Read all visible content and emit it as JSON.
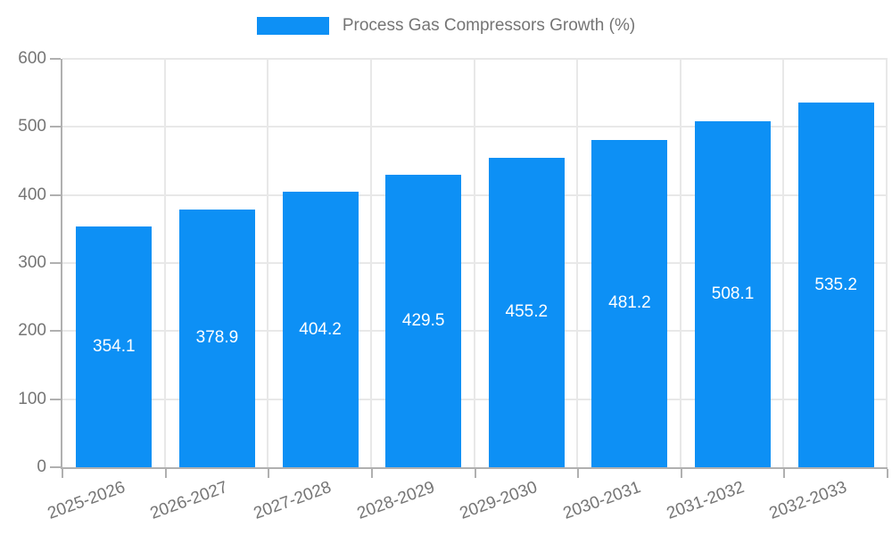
{
  "legend": {
    "label": "Process Gas Compressors Growth (%)"
  },
  "chart_data": {
    "type": "bar",
    "title": "Process Gas Compressors Growth (%)",
    "categories": [
      "2025-2026",
      "2026-2027",
      "2027-2028",
      "2028-2029",
      "2029-2030",
      "2030-2031",
      "2031-2032",
      "2032-2033"
    ],
    "series": [
      {
        "name": "Process Gas Compressors Growth (%)",
        "values": [
          354.1,
          378.9,
          404.2,
          429.5,
          455.2,
          481.2,
          508.1,
          535.2
        ]
      }
    ],
    "value_labels": [
      "354.1",
      "378.9",
      "404.2",
      "429.5",
      "455.2",
      "481.2",
      "508.1",
      "535.2"
    ],
    "xlabel": "",
    "ylabel": "",
    "ylim": [
      0,
      600
    ],
    "yticks": [
      0,
      100,
      200,
      300,
      400,
      500,
      600
    ],
    "grid": true,
    "legend_position": "top",
    "colors": {
      "bar": "#0d90f5",
      "value_label": "#ffffff",
      "axis_text": "#757575",
      "gridline": "#e8e8e8",
      "axis_line": "#b0b0b0"
    }
  }
}
